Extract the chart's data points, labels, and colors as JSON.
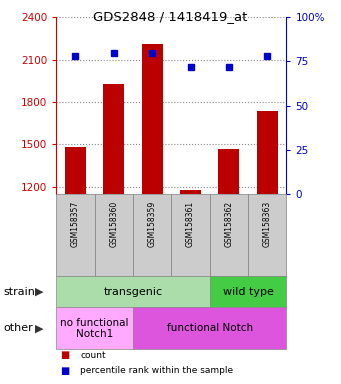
{
  "title": "GDS2848 / 1418419_at",
  "samples": [
    "GSM158357",
    "GSM158360",
    "GSM158359",
    "GSM158361",
    "GSM158362",
    "GSM158363"
  ],
  "counts": [
    1480,
    1930,
    2210,
    1175,
    1470,
    1740
  ],
  "percentiles": [
    78,
    80,
    80,
    72,
    72,
    78
  ],
  "ylim_left": [
    1150,
    2400
  ],
  "ylim_right": [
    0,
    100
  ],
  "yticks_left": [
    1200,
    1500,
    1800,
    2100,
    2400
  ],
  "yticks_right": [
    0,
    25,
    50,
    75,
    100
  ],
  "bar_color": "#bb0000",
  "dot_color": "#0000cc",
  "strain_labels": [
    {
      "text": "transgenic",
      "cols": [
        0,
        1,
        2,
        3
      ],
      "color": "#aaddaa"
    },
    {
      "text": "wild type",
      "cols": [
        4,
        5
      ],
      "color": "#44cc44"
    }
  ],
  "other_labels": [
    {
      "text": "no functional\nNotch1",
      "cols": [
        0,
        1
      ],
      "color": "#ffaaff"
    },
    {
      "text": "functional Notch",
      "cols": [
        2,
        3,
        4,
        5
      ],
      "color": "#dd55dd"
    }
  ],
  "tick_color_left": "#cc0000",
  "tick_color_right": "#0000cc",
  "legend_items": [
    {
      "color": "#bb0000",
      "label": "count"
    },
    {
      "color": "#0000cc",
      "label": "percentile rank within the sample"
    }
  ],
  "background_color": "#ffffff",
  "grid_color": "#888888",
  "sample_box_color": "#cccccc",
  "left_labels": [
    "strain",
    "other"
  ],
  "arrow_color": "#333333"
}
